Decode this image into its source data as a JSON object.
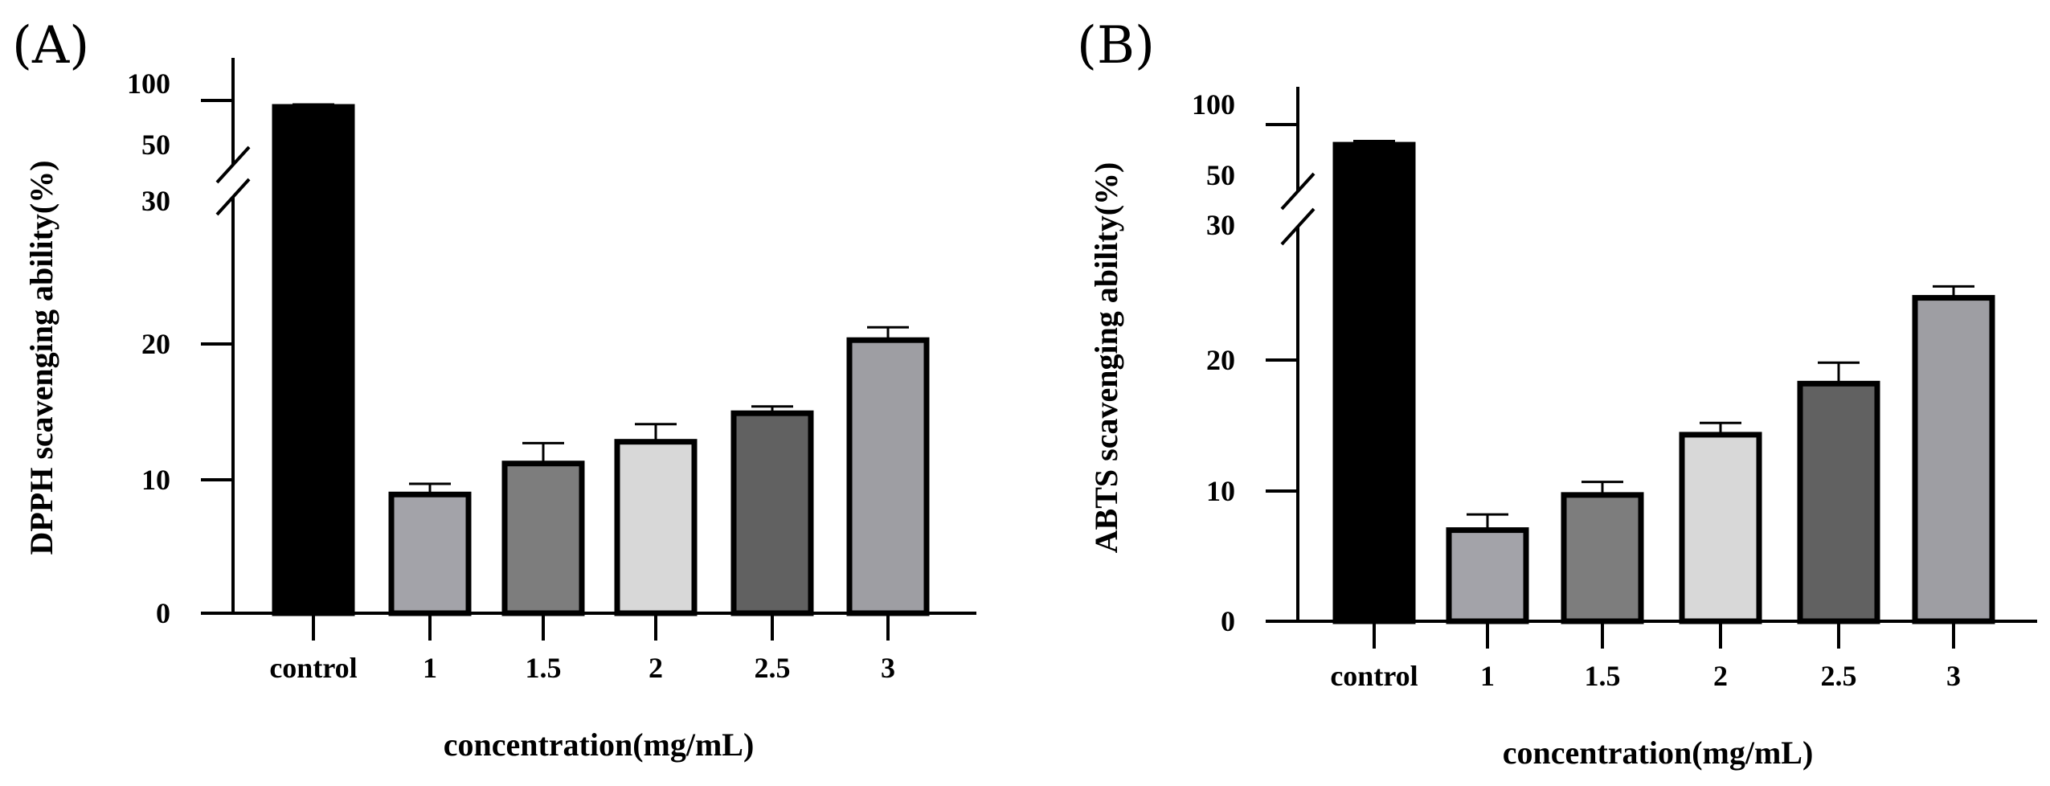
{
  "chart_data": [
    {
      "panel": "(A)",
      "type": "bar",
      "categories": [
        "control",
        "1",
        "1.5",
        "2",
        "2.5",
        "3"
      ],
      "values": [
        92,
        8.9,
        11.2,
        12.8,
        14.9,
        20.3
      ],
      "errors": [
        3,
        0.8,
        1.5,
        1.3,
        0.5,
        1.0
      ],
      "colors": [
        "#000000",
        "#a3a3a9",
        "#7d7d7d",
        "#d8d8d8",
        "#616161",
        "#9e9ea3"
      ],
      "ylabel": "DPPH scavenging ability(%)",
      "xlabel": "concentration(mg/mL)",
      "yticks": [
        "0",
        "10",
        "20",
        "30",
        "50",
        "100"
      ],
      "axis_break": {
        "lower_range": [
          0,
          30
        ],
        "upper_range": [
          30,
          100
        ]
      }
    },
    {
      "panel": "(B)",
      "type": "bar",
      "categories": [
        "control",
        "1",
        "1.5",
        "2",
        "2.5",
        "3"
      ],
      "values": [
        78,
        7.0,
        9.7,
        14.3,
        18.2,
        24.9
      ],
      "errors": [
        4,
        1.2,
        1.0,
        0.9,
        1.6,
        0.9
      ],
      "colors": [
        "#000000",
        "#a3a3a9",
        "#7d7d7d",
        "#d8d8d8",
        "#616161",
        "#9e9ea3"
      ],
      "ylabel": "ABTS scavenging ability(%)",
      "xlabel": "concentration(mg/mL)",
      "yticks": [
        "0",
        "10",
        "20",
        "30",
        "50",
        "100"
      ],
      "axis_break": {
        "lower_range": [
          0,
          30
        ],
        "upper_range": [
          30,
          100
        ]
      }
    }
  ]
}
